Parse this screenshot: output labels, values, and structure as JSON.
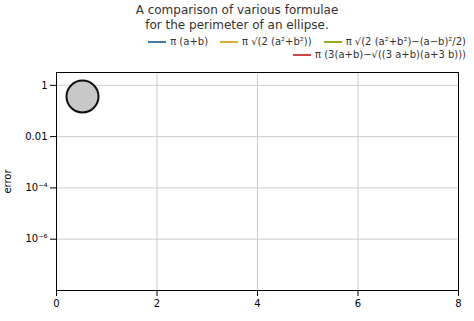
{
  "chart_data": {
    "type": "line",
    "title": "A comparison of various formulae\nfor the perimeter of an ellipse.",
    "ylabel": "error",
    "x": [],
    "series": [
      {
        "name": "π (a+b)",
        "color": "#4477aa",
        "values": []
      },
      {
        "name": "π √(2 (a²+b²))",
        "color": "#ddaa33",
        "values": []
      },
      {
        "name": "π √(2 (a²+b²)−(a−b)²/2)",
        "color": "#99aa22",
        "values": []
      },
      {
        "name": "π (3(a+b)−√((3 a+b)(a+3 b)))",
        "color": "#cc4444",
        "values": []
      }
    ],
    "xlim": [
      0,
      8
    ],
    "xticks": [
      0,
      2,
      4,
      6,
      8
    ],
    "ylim": [
      1e-08,
      3.1622776601683795
    ],
    "yticks": [
      1,
      0.01,
      {
        "value": 0.0001,
        "label": "10⁻⁴"
      },
      {
        "value": 1e-06,
        "label": "10⁻⁶"
      }
    ],
    "log": "y",
    "grid": true,
    "legend": "upper right"
  }
}
